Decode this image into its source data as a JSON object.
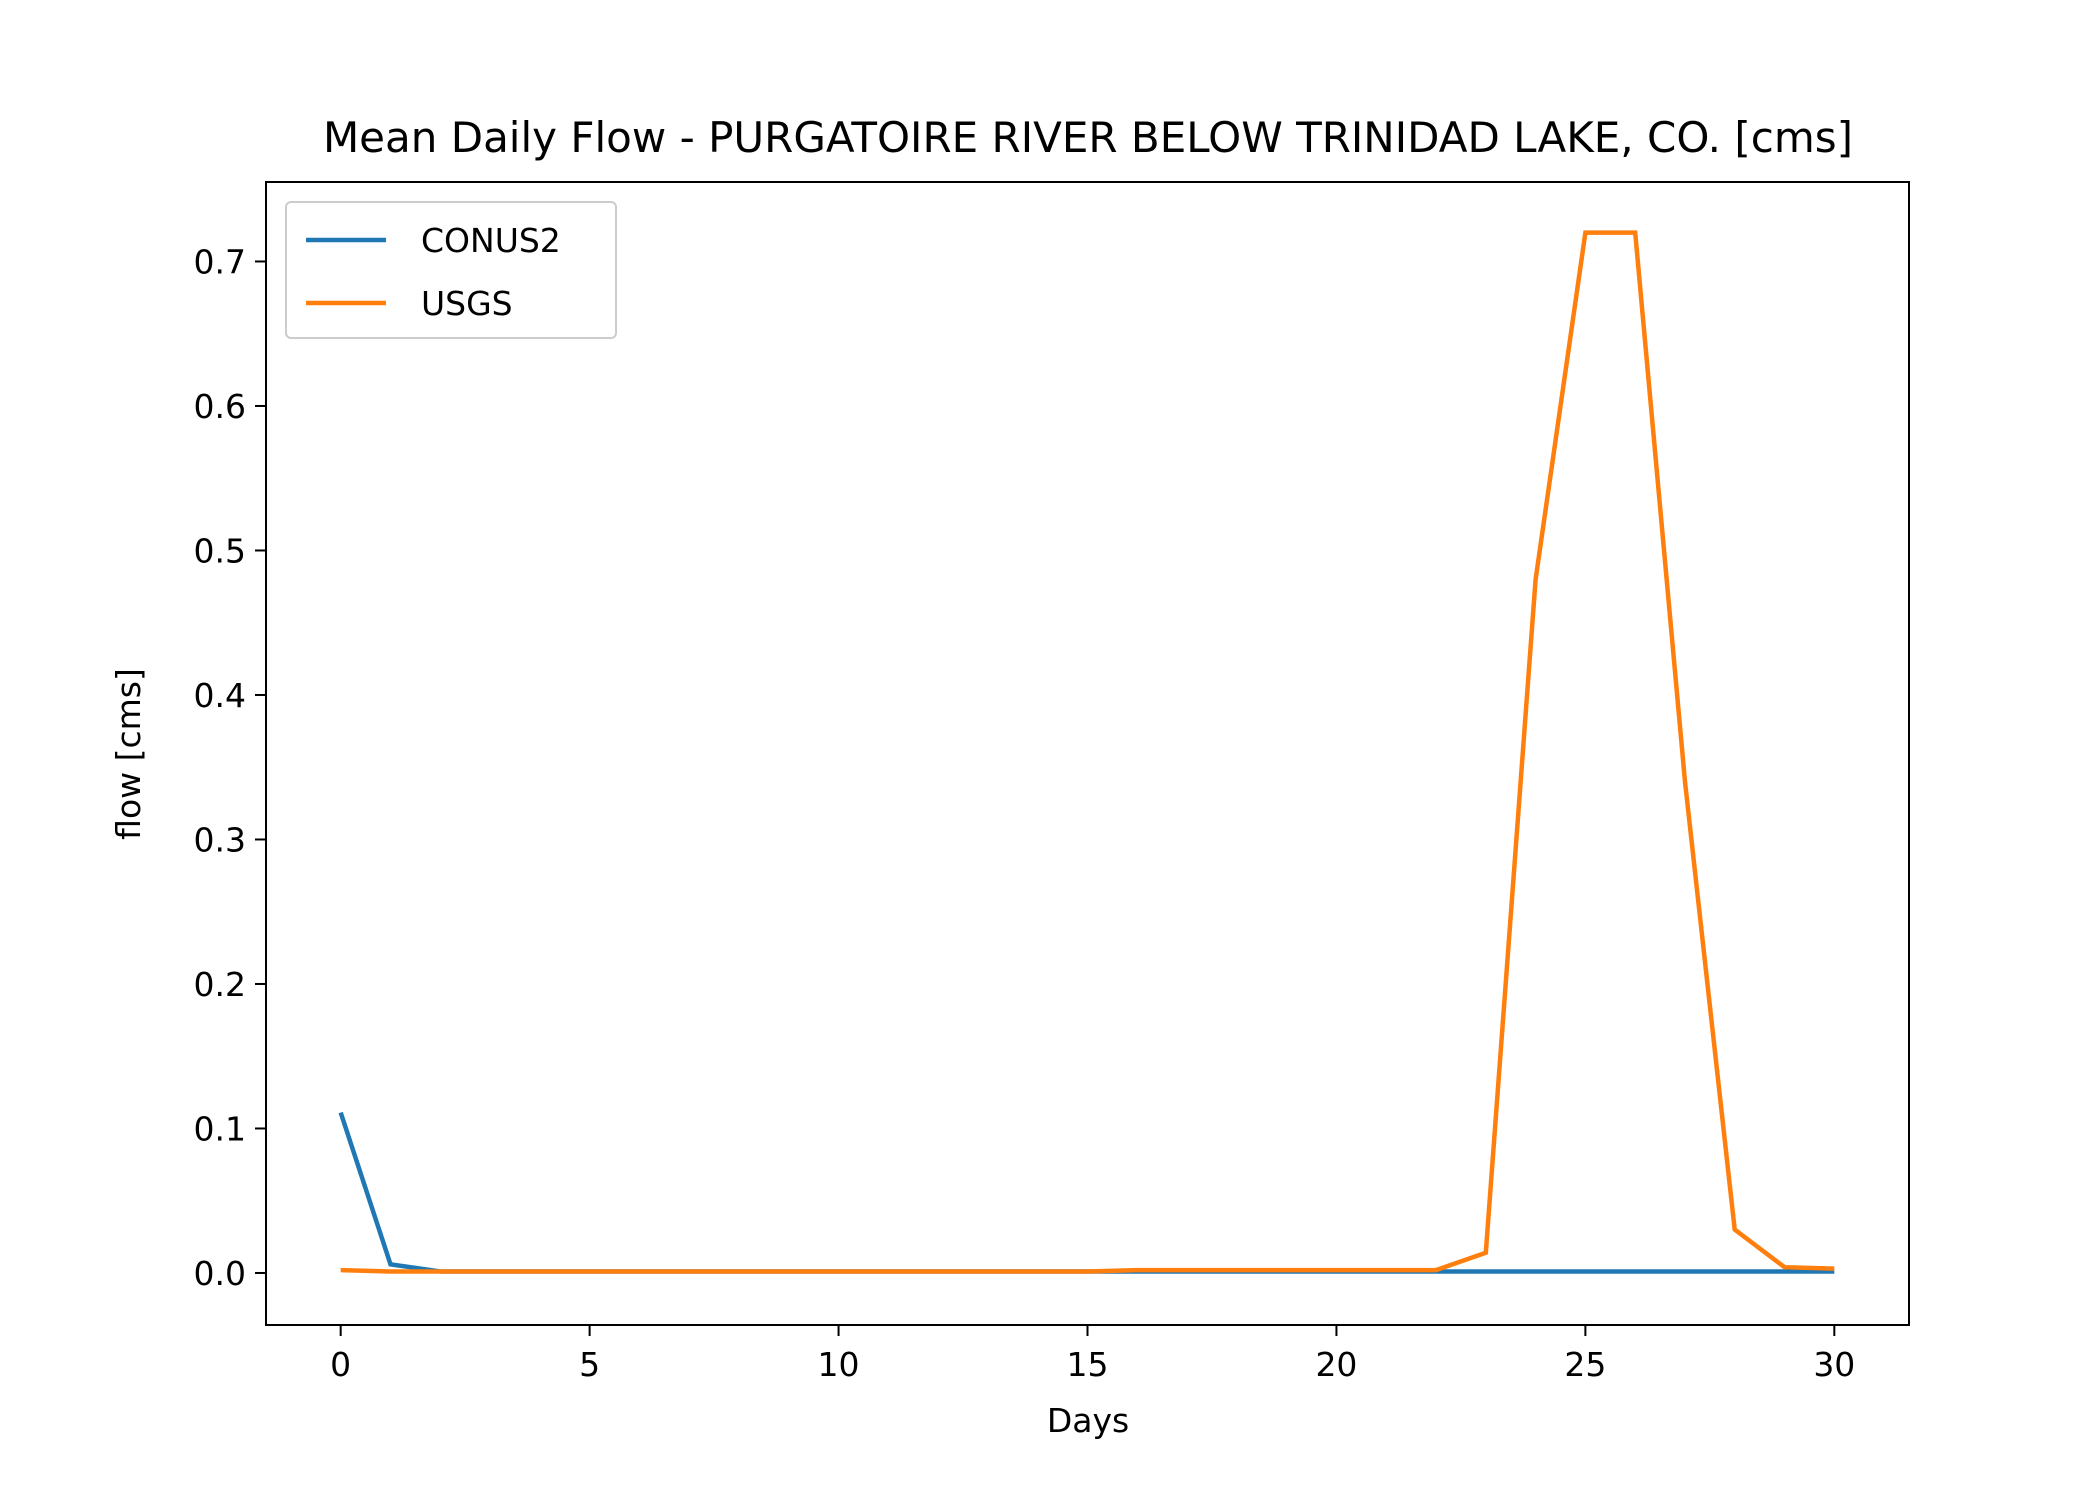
{
  "chart_data": {
    "type": "line",
    "title": "Mean Daily Flow - PURGATOIRE RIVER BELOW TRINIDAD LAKE, CO. [cms]",
    "xlabel": "Days",
    "ylabel": "flow [cms]",
    "xlim": [
      -1.5,
      31.5
    ],
    "ylim": [
      -0.036,
      0.755
    ],
    "xticks": [
      0,
      5,
      10,
      15,
      20,
      25,
      30
    ],
    "yticks": [
      0.0,
      0.1,
      0.2,
      0.3,
      0.4,
      0.5,
      0.6,
      0.7
    ],
    "ytick_labels": [
      "0.0",
      "0.1",
      "0.2",
      "0.3",
      "0.4",
      "0.5",
      "0.6",
      "0.7"
    ],
    "grid": false,
    "legend_position": "top-left",
    "x": [
      0,
      1,
      2,
      3,
      4,
      5,
      6,
      7,
      8,
      9,
      10,
      11,
      12,
      13,
      14,
      15,
      16,
      17,
      18,
      19,
      20,
      21,
      22,
      23,
      24,
      25,
      26,
      27,
      28,
      29,
      30
    ],
    "series": [
      {
        "name": "CONUS2",
        "color": "#1f77b4",
        "values": [
          0.111,
          0.006,
          0.001,
          0.001,
          0.001,
          0.001,
          0.001,
          0.001,
          0.001,
          0.001,
          0.001,
          0.001,
          0.001,
          0.001,
          0.001,
          0.001,
          0.001,
          0.001,
          0.001,
          0.001,
          0.001,
          0.001,
          0.001,
          0.001,
          0.001,
          0.001,
          0.001,
          0.001,
          0.001,
          0.001,
          0.001
        ]
      },
      {
        "name": "USGS",
        "color": "#ff7f0e",
        "values": [
          0.002,
          0.001,
          0.001,
          0.001,
          0.001,
          0.001,
          0.001,
          0.001,
          0.001,
          0.001,
          0.001,
          0.001,
          0.001,
          0.001,
          0.001,
          0.001,
          0.002,
          0.002,
          0.002,
          0.002,
          0.002,
          0.002,
          0.002,
          0.014,
          0.48,
          0.72,
          0.72,
          0.34,
          0.03,
          0.004,
          0.003
        ]
      }
    ]
  }
}
